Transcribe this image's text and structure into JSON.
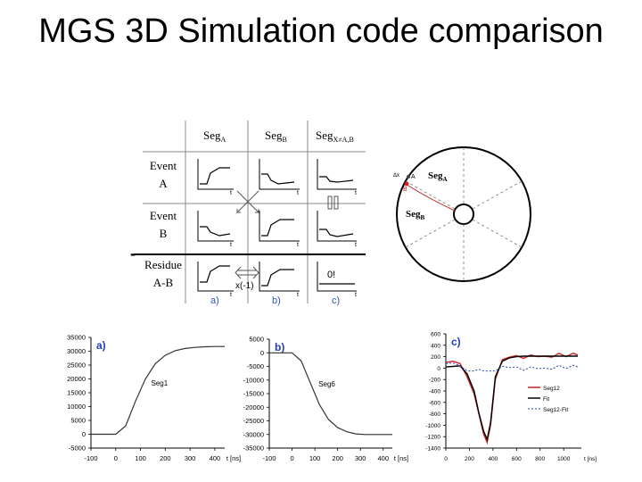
{
  "slide": {
    "title": "MGS 3D Simulation code comparison"
  },
  "matrix": {
    "col_headers": [
      {
        "main": "Seg",
        "sub": "A"
      },
      {
        "main": "Seg",
        "sub": "B"
      },
      {
        "main": "Seg",
        "sub": "X≠A,B"
      }
    ],
    "row_headers": [
      {
        "line1": "Event",
        "line2": "A"
      },
      {
        "line1": "Event",
        "line2": "B"
      },
      {
        "line1": "Residue",
        "line2": "A-B"
      }
    ],
    "minus_sign": "-",
    "zero_label": "0!",
    "exchange_label": "x(-1)",
    "panel_labels": [
      "a)",
      "b)",
      "c)"
    ],
    "axis_t": "t"
  },
  "detector": {
    "seg_a": {
      "main": "Seg",
      "sub": "A"
    },
    "seg_b": {
      "main": "Seg",
      "sub": "B"
    },
    "point_a": "A",
    "point_b": "B",
    "delta": "Δx"
  },
  "chart_data": [
    {
      "type": "line",
      "panel_label": "a)",
      "series": [
        {
          "name": "Seg1",
          "x": [
            -100,
            0,
            40,
            80,
            120,
            160,
            200,
            240,
            280,
            320,
            360,
            400,
            440
          ],
          "values": [
            0,
            0,
            3000,
            12000,
            20000,
            25500,
            28500,
            30200,
            31000,
            31400,
            31600,
            31700,
            31700
          ]
        }
      ],
      "xlabel": "t [ns]",
      "xlim": [
        -100,
        440
      ],
      "ylim": [
        -5000,
        35000
      ],
      "xticks": [
        "-100",
        "0",
        "100",
        "200",
        "300",
        "400"
      ],
      "yticks": [
        "35000",
        "30000",
        "25000",
        "20000",
        "15000",
        "10000",
        "5000",
        "0",
        "-5000"
      ]
    },
    {
      "type": "line",
      "panel_label": "b)",
      "series": [
        {
          "name": "Seg6",
          "x": [
            -100,
            0,
            40,
            80,
            120,
            160,
            200,
            240,
            280,
            320,
            360,
            400,
            440
          ],
          "values": [
            0,
            0,
            -3000,
            -11000,
            -19000,
            -24500,
            -27500,
            -29000,
            -29800,
            -30000,
            -30000,
            -30000,
            -30000
          ]
        }
      ],
      "xlabel": "t [ns]",
      "xlim": [
        -100,
        440
      ],
      "ylim": [
        -35000,
        5000
      ],
      "xticks": [
        "-100",
        "0",
        "100",
        "200",
        "300",
        "400"
      ],
      "yticks": [
        "5000",
        "0",
        "-5000",
        "-10000",
        "-15000",
        "-20000",
        "-25000",
        "-30000",
        "-35000"
      ]
    },
    {
      "type": "line",
      "panel_label": "c)",
      "series": [
        {
          "name": "Seg12",
          "x": [
            0,
            60,
            120,
            180,
            240,
            280,
            320,
            350,
            380,
            420,
            480,
            540,
            600,
            660,
            720,
            780,
            840,
            900,
            960,
            1020,
            1080,
            1120
          ],
          "values": [
            100,
            120,
            80,
            -150,
            -450,
            -800,
            -1150,
            -1300,
            -1000,
            -200,
            150,
            190,
            220,
            170,
            230,
            200,
            210,
            190,
            260,
            200,
            260,
            230
          ]
        },
        {
          "name": "Fit",
          "x": [
            0,
            60,
            120,
            180,
            240,
            280,
            320,
            350,
            380,
            420,
            480,
            540,
            600,
            660,
            720,
            780,
            840,
            900,
            960,
            1020,
            1080,
            1120
          ],
          "values": [
            20,
            30,
            40,
            -100,
            -400,
            -780,
            -1100,
            -1250,
            -950,
            -150,
            120,
            180,
            200,
            210,
            210,
            210,
            210,
            210,
            210,
            210,
            210,
            210
          ]
        },
        {
          "name": "Seg12-Fit",
          "x": [
            0,
            60,
            120,
            180,
            240,
            280,
            320,
            350,
            380,
            420,
            480,
            540,
            600,
            660,
            720,
            780,
            840,
            900,
            960,
            1020,
            1080,
            1120
          ],
          "values": [
            80,
            90,
            40,
            -50,
            -50,
            -20,
            -50,
            -50,
            -50,
            -50,
            30,
            10,
            20,
            -40,
            20,
            -10,
            0,
            -20,
            50,
            -10,
            50,
            20
          ]
        }
      ],
      "xlabel": "t [ns]",
      "xlim": [
        0,
        1150
      ],
      "ylim": [
        -1400,
        600
      ],
      "xticks": [
        "0",
        "200",
        "400",
        "600",
        "800",
        "1000"
      ],
      "yticks": [
        "600",
        "400",
        "200",
        "0",
        "-200",
        "-400",
        "-600",
        "-800",
        "-1000",
        "-1200",
        "-1400"
      ],
      "colors": {
        "Seg12": "#cc2222",
        "Fit": "#000000",
        "Seg12-Fit": "#1f3fbf"
      }
    }
  ]
}
